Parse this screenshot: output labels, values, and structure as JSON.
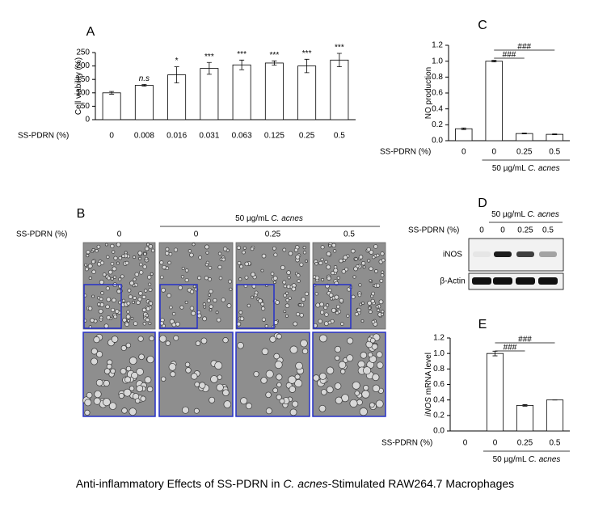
{
  "chart_data": [
    {
      "type": "bar",
      "panel": "A",
      "ylabel": "Cell viability (%)",
      "xlabel": "SS-PDRN (%)",
      "categories": [
        "0",
        "0.008",
        "0.016",
        "0.031",
        "0.063",
        "0.125",
        "0.25",
        "0.5"
      ],
      "values": [
        100,
        128,
        167,
        191,
        204,
        211,
        200,
        222
      ],
      "errors": [
        5,
        3,
        30,
        22,
        18,
        8,
        25,
        25
      ],
      "significance": [
        null,
        "n.s",
        "*",
        "***",
        "***",
        "***",
        "***",
        "***"
      ],
      "color": "#ffffff",
      "ylim": [
        0,
        250
      ],
      "yticks": [
        0,
        50,
        100,
        150,
        200,
        250
      ]
    },
    {
      "type": "bar",
      "panel": "C",
      "ylabel": "NO production",
      "xlabel": "SS-PDRN (%)",
      "categories": [
        "0",
        "0",
        "0.25",
        "0.5"
      ],
      "values": [
        0.15,
        1.0,
        0.09,
        0.08
      ],
      "errors": [
        0.01,
        0.01,
        0.005,
        0.005
      ],
      "brackets": [
        {
          "from": 1,
          "to": 3,
          "label": "###"
        },
        {
          "from": 1,
          "to": 2,
          "label": "###"
        }
      ],
      "group": {
        "text": "50 µg/mL",
        "italic_text": "C. acnes",
        "from": 1,
        "to": 3
      },
      "color": "#ffffff",
      "ylim": [
        0,
        1.2
      ],
      "yticks": [
        {
          "value": 0,
          "label": "0.0"
        },
        0.2,
        0.4,
        0.6,
        0.8,
        {
          "value": 1,
          "label": "1.0"
        },
        1.2
      ]
    },
    {
      "type": "bar",
      "panel": "E",
      "ylabel_italic": "iNOS",
      "ylabel": "mRNA level",
      "xlabel": "SS-PDRN (%)",
      "categories": [
        "0",
        "0",
        "0.25",
        "0.5"
      ],
      "values": [
        0,
        1.0,
        0.33,
        0.4
      ],
      "errors": [
        0,
        0.03,
        0.01,
        0
      ],
      "brackets": [
        {
          "from": 1,
          "to": 3,
          "label": "###"
        },
        {
          "from": 1,
          "to": 2,
          "label": "###"
        }
      ],
      "group": {
        "text": "50 µg/mL",
        "italic_text": "C. acnes",
        "from": 1,
        "to": 3
      },
      "color": "#ffffff",
      "ylim": [
        0,
        1.2
      ],
      "yticks": [
        {
          "value": 0,
          "label": "0.0"
        },
        0.2,
        0.4,
        0.6,
        0.8,
        {
          "value": 1,
          "label": "1.0"
        },
        1.2
      ]
    }
  ],
  "panel_b": {
    "panel": "B",
    "row_label": "SS-PDRN (%)",
    "columns": [
      "0",
      "0",
      "0.25",
      "0.5"
    ],
    "group": {
      "text": "50 µg/mL",
      "italic_text": "C. acnes"
    }
  },
  "panel_d": {
    "panel": "D",
    "row_label": "SS-PDRN (%)",
    "columns": [
      "0",
      "0",
      "0.25",
      "0.5"
    ],
    "group": {
      "text": "50 µg/mL",
      "italic_text": "C. acnes"
    },
    "rows": [
      "iNOS",
      "β-Actin"
    ]
  },
  "caption": {
    "text1": "Anti-inflammatory Effects of SS-PDRN in ",
    "italic": "C. acnes",
    "text2": "-Stimulated RAW264.7 Macrophages"
  }
}
